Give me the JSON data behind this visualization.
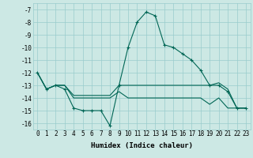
{
  "xlabel": "Humidex (Indice chaleur)",
  "bg_color": "#cce8e4",
  "grid_color": "#99cccc",
  "line_color": "#006655",
  "xlim": [
    -0.5,
    23.5
  ],
  "ylim": [
    -16.5,
    -6.5
  ],
  "yticks": [
    -7,
    -8,
    -9,
    -10,
    -11,
    -12,
    -13,
    -14,
    -15,
    -16
  ],
  "xticks": [
    0,
    1,
    2,
    3,
    4,
    5,
    6,
    7,
    8,
    9,
    10,
    11,
    12,
    13,
    14,
    15,
    16,
    17,
    18,
    19,
    20,
    21,
    22,
    23
  ],
  "line1_x": [
    0,
    1,
    2,
    3,
    4,
    5,
    6,
    7,
    8,
    9,
    10,
    11,
    12,
    13,
    14,
    15,
    16,
    17,
    18,
    19,
    20,
    21,
    22,
    23
  ],
  "line1_y": [
    -12,
    -13.3,
    -13,
    -13.3,
    -14.8,
    -15,
    -15,
    -15,
    -16.2,
    -13,
    -10,
    -8,
    -7.2,
    -7.5,
    -9.8,
    -10,
    -10.5,
    -11,
    -11.8,
    -13,
    -13,
    -13.5,
    -14.8,
    -14.8
  ],
  "line2_x": [
    0,
    1,
    2,
    3,
    4,
    5,
    6,
    7,
    8,
    9,
    10,
    11,
    12,
    13,
    14,
    15,
    16,
    17,
    18,
    19,
    20,
    21,
    22,
    23
  ],
  "line2_y": [
    -12,
    -13.3,
    -13,
    -13,
    -13.8,
    -13.8,
    -13.8,
    -13.8,
    -13.8,
    -13,
    -13,
    -13,
    -13,
    -13,
    -13,
    -13,
    -13,
    -13,
    -13,
    -13,
    -12.8,
    -13.3,
    -14.8,
    -14.8
  ],
  "line3_x": [
    0,
    1,
    2,
    3,
    4,
    5,
    6,
    7,
    8,
    9,
    10,
    11,
    12,
    13,
    14,
    15,
    16,
    17,
    18,
    19,
    20,
    21,
    22,
    23
  ],
  "line3_y": [
    -12,
    -13.3,
    -13,
    -13,
    -14,
    -14,
    -14,
    -14,
    -14,
    -13.5,
    -14,
    -14,
    -14,
    -14,
    -14,
    -14,
    -14,
    -14,
    -14,
    -14.5,
    -14,
    -14.8,
    -14.8,
    -14.8
  ]
}
